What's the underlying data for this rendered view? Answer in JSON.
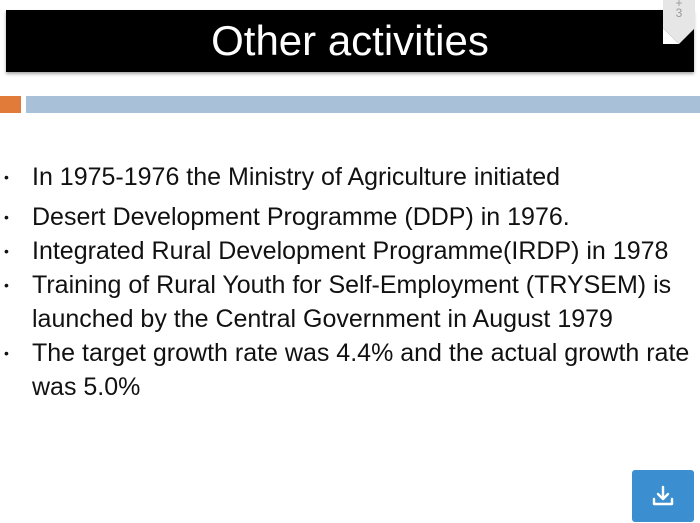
{
  "slide": {
    "title": "Other activities",
    "page_number": "+\n3",
    "bullets": [
      "In 1975-1976 the Ministry of Agriculture initiated",
      "Desert Development Programme (DDP) in 1976.",
      "Integrated Rural Development Programme(IRDP) in 1978",
      "Training of Rural Youth for Self-Employment (TRYSEM) is launched by the Central Government in August 1979",
      "The target growth rate was 4.4% and the actual growth rate was 5.0%"
    ]
  },
  "download": {
    "icon": "download-icon"
  },
  "colors": {
    "title_bg": "#000000",
    "title_text": "#ffffff",
    "accent_orange": "#e07b39",
    "accent_blue": "#a8c0d8",
    "download_bg": "#3b8fd0"
  }
}
